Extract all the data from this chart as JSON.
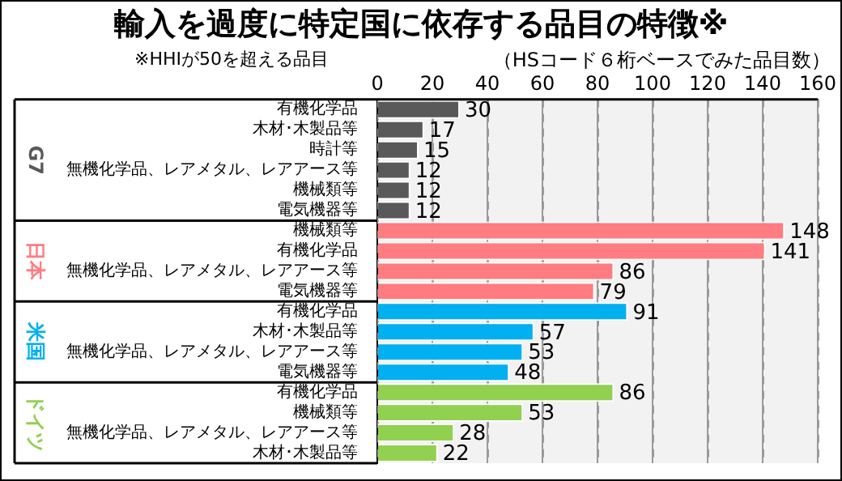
{
  "chart_data": {
    "type": "bar",
    "orientation": "horizontal",
    "title": "輸入を過度に特定国に依存する品目の特徴※",
    "subtitle": "※HHIが50を超える品目",
    "xlabel": "（HSコード６桁ベースでみた品目数）",
    "categories": [
      "有機化学品",
      "木材･木製品等",
      "時計等",
      "無機化学品、レアメタル、レアアース等",
      "機械類等",
      "電気機器等",
      "機械類等",
      "有機化学品",
      "無機化学品、レアメタル、レアアース等",
      "電気機器等",
      "有機化学品",
      "木材･木製品等",
      "無機化学品、レアメタル、レアアース等",
      "電気機器等",
      "有機化学品",
      "機械類等",
      "無機化学品、レアメタル、レアアース等",
      "木材･木製品等"
    ],
    "series": [
      {
        "name": "G7",
        "color": "#595959",
        "values": [
          30,
          17,
          15,
          12,
          12,
          12,
          null,
          null,
          null,
          null,
          null,
          null,
          null,
          null,
          null,
          null,
          null,
          null
        ]
      },
      {
        "name": "日本",
        "color": "#ff7c80",
        "values": [
          null,
          null,
          null,
          null,
          null,
          null,
          148,
          141,
          86,
          79,
          null,
          null,
          null,
          null,
          null,
          null,
          null,
          null
        ]
      },
      {
        "name": "米国",
        "color": "#00b0f0",
        "values": [
          null,
          null,
          null,
          null,
          null,
          null,
          null,
          null,
          null,
          null,
          91,
          57,
          53,
          48,
          null,
          null,
          null,
          null
        ]
      },
      {
        "name": "ドイツ",
        "color": "#92d050",
        "values": [
          null,
          null,
          null,
          null,
          null,
          null,
          null,
          null,
          null,
          null,
          null,
          null,
          null,
          null,
          86,
          53,
          28,
          22
        ]
      }
    ],
    "xlim": [
      0,
      160
    ],
    "xticks": [
      0,
      20,
      40,
      60,
      80,
      100,
      120,
      140,
      160
    ],
    "grid": "x",
    "data_labels": true,
    "legend": false
  }
}
